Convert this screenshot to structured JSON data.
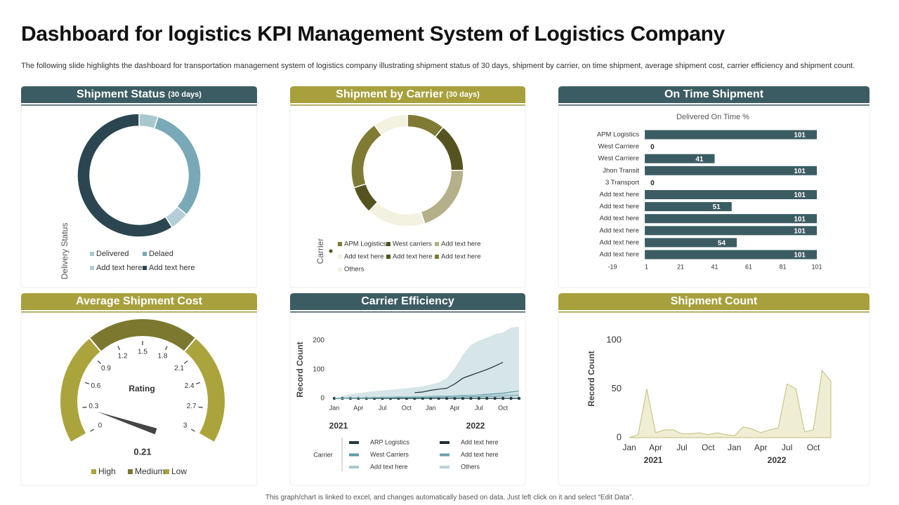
{
  "title": "Dashboard for logistics KPI Management System of Logistics Company",
  "description": "The following slide highlights the dashboard for transportation management system of logistics company illustrating shipment status of 30 days, shipment by carrier, on time shipment, average shipment cost, carrier efficiency and shipment count.",
  "footer": "This graph/chart is linked to excel, and changes automatically based on data. Just left click on it and select “Edit Data”.",
  "chart_data": [
    {
      "type": "donut",
      "title": "Shipment Status",
      "subtitle": "(30 days)",
      "header_color": "#3c5c63",
      "axis_label": "Delivery Status",
      "categories": [
        "Delivered",
        "Delaed",
        "Add text here",
        "Add text here"
      ],
      "values": [
        5,
        31,
        5,
        59
      ],
      "colors": [
        "#a9c7cf",
        "#79a9b7",
        "#b3ced6",
        "#2b4650"
      ]
    },
    {
      "type": "donut",
      "title": "Shipment by Carrier",
      "subtitle": "(30 days)",
      "header_color": "#a8a03c",
      "axis_label": "Carrier",
      "categories": [
        "APM Logistics",
        "West carriers",
        "Add text here",
        "Add text here",
        "Add text here",
        "Add text here",
        "Others"
      ],
      "values": [
        11,
        14,
        20,
        17,
        8,
        20,
        10
      ],
      "colors": [
        "#7f7b34",
        "#55531f",
        "#b4b18a",
        "#f3f1df",
        "#55531f",
        "#7f7b34",
        "#f3f1df"
      ]
    },
    {
      "type": "hbar",
      "title": "On Time Shipment",
      "header_color": "#3c5c63",
      "label": "Delivered On Time  %",
      "categories": [
        "APM Logistics",
        "West Carriere",
        "West Carriere",
        "Jhon Transit",
        "3 Transport",
        "Add text here",
        "Add text here",
        "Add text here",
        "Add text here",
        "Add text here",
        "Add text here"
      ],
      "values": [
        101,
        0,
        41,
        101,
        0,
        101,
        51,
        101,
        101,
        54,
        101
      ],
      "color": "#3c5c63",
      "xlim": [
        -19,
        101
      ],
      "xticks": [
        -19,
        1,
        21,
        41,
        61,
        81,
        101
      ]
    },
    {
      "type": "gauge",
      "title": "Average Shipment Cost",
      "header_color": "#a8a03c",
      "label": "Rating",
      "value": 0.21,
      "ylim": [
        0,
        3
      ],
      "yticks": [
        0,
        0.3,
        0.6,
        0.9,
        1.2,
        1.5,
        1.8,
        2.1,
        2.4,
        2.7,
        3
      ],
      "bands": [
        {
          "name": "High",
          "value": 1,
          "color": "#aba43d"
        },
        {
          "name": "Medium",
          "value": 1,
          "color": "#7c7830"
        },
        {
          "name": "Low",
          "value": 1,
          "color": "#aba43d"
        }
      ],
      "needle_color": "#454545"
    },
    {
      "type": "line",
      "title": "Carrier Efficiency",
      "header_color": "#3c5c63",
      "axis_label": "Record Count",
      "legend_title": "Carrier",
      "categories": [
        "Jan",
        null,
        null,
        "Apr",
        null,
        null,
        "Jul",
        null,
        null,
        "Oct",
        null,
        null,
        "Jan",
        null,
        null,
        "Apr",
        null,
        null,
        "Jul",
        null,
        null,
        "Oct",
        null,
        null
      ],
      "x_groups": [
        "2021",
        "2022"
      ],
      "ylim": [
        0,
        250
      ],
      "yticks": [
        0,
        100,
        200
      ],
      "series": [
        {
          "name": "ARP Logistics",
          "color": "#1f3a44",
          "markers": true,
          "values": [
            0,
            0,
            0,
            0,
            0,
            0,
            0,
            0,
            0,
            0,
            0,
            0,
            0,
            0,
            0,
            0,
            0,
            0,
            0,
            0,
            0,
            0,
            0,
            0
          ]
        },
        {
          "name": "West Carriers",
          "color": "#5e9aa6",
          "values": [
            0,
            1,
            2,
            2,
            3,
            3,
            4,
            4,
            5,
            5,
            6,
            6,
            7,
            8,
            8,
            9,
            10,
            10,
            12,
            14,
            16,
            18,
            22,
            25
          ]
        },
        {
          "name": "Add text here",
          "color": "#a6c8d0",
          "values": [
            0,
            1,
            1,
            2,
            2,
            3,
            3,
            4,
            4,
            5,
            5,
            6,
            6,
            7,
            7,
            8,
            8,
            9,
            10,
            11,
            12,
            13,
            14,
            15
          ]
        },
        {
          "name": "Add text here",
          "color": "#1e2f35",
          "values": [
            null,
            null,
            null,
            null,
            null,
            null,
            null,
            null,
            null,
            null,
            20,
            22,
            28,
            32,
            35,
            50,
            70,
            80,
            90,
            100,
            112,
            125,
            null,
            null
          ]
        },
        {
          "name": "Add text here",
          "color": "#6da3ad",
          "values": [
            0,
            0,
            1,
            1,
            1,
            2,
            2,
            2,
            3,
            3,
            3,
            4,
            4,
            4,
            5,
            5,
            5,
            6,
            6,
            7,
            7,
            8,
            9,
            10
          ]
        },
        {
          "name": "Others",
          "color": "#b9d3d9",
          "area": true,
          "values": [
            0,
            8,
            15,
            18,
            22,
            25,
            28,
            30,
            32,
            35,
            38,
            42,
            48,
            55,
            70,
            105,
            150,
            185,
            200,
            210,
            222,
            228,
            245,
            248
          ]
        }
      ]
    },
    {
      "type": "area",
      "title": "Shipment Count",
      "header_color": "#a8a03c",
      "axis_label": "Record Count",
      "categories": [
        "Jan",
        null,
        null,
        "Apr",
        null,
        null,
        "Jul",
        null,
        null,
        "Oct",
        null,
        null,
        "Jan",
        null,
        null,
        "Apr",
        null,
        null,
        "Jul",
        null,
        null,
        "Oct",
        null,
        null
      ],
      "x_groups": [
        "2021",
        "2022"
      ],
      "ylim": [
        0,
        100
      ],
      "yticks": [
        0,
        50,
        100
      ],
      "values": [
        0,
        3,
        50,
        5,
        8,
        8,
        4,
        4,
        5,
        3,
        5,
        3,
        2,
        11,
        9,
        5,
        8,
        10,
        55,
        50,
        6,
        8,
        69,
        58
      ],
      "color": "#c2bf7a",
      "fill": "#efedd3"
    }
  ]
}
